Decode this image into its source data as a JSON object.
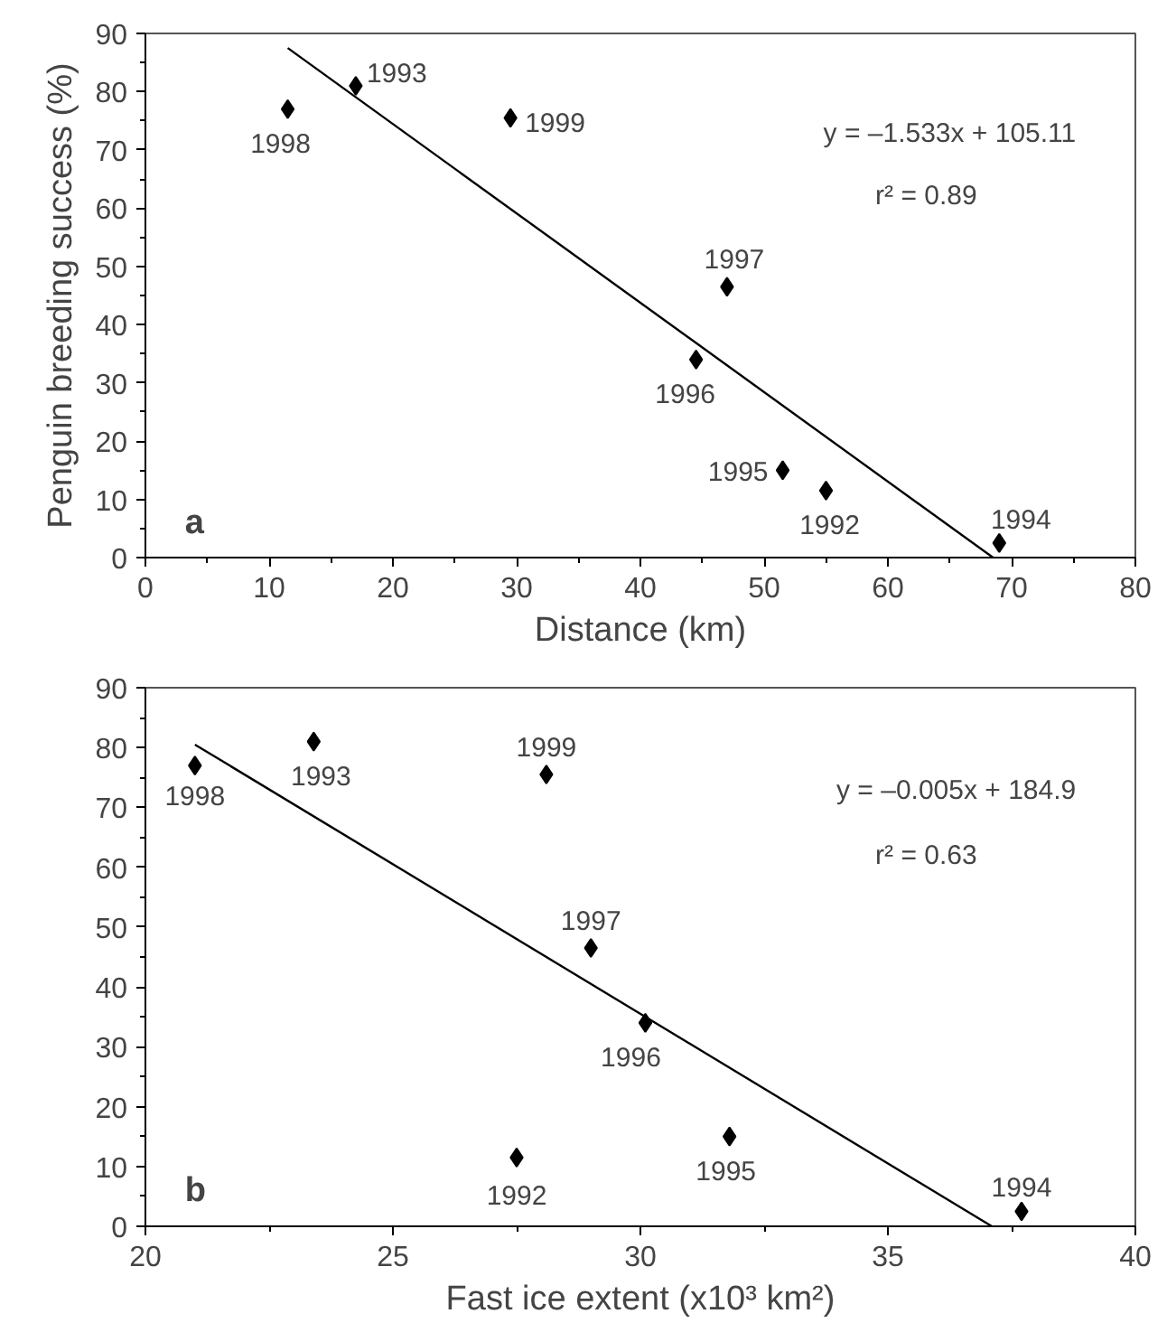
{
  "chart_data": [
    {
      "type": "scatter",
      "xlabel": "Distance (km)",
      "ylabel": "Penguin breeding success (%)",
      "xlim": [
        0,
        80
      ],
      "ylim": [
        0,
        90
      ],
      "xticks": [
        0,
        10,
        20,
        30,
        40,
        50,
        60,
        70,
        80
      ],
      "yticks": [
        0,
        10,
        20,
        30,
        40,
        50,
        60,
        70,
        80,
        90
      ],
      "grid": false,
      "series": [
        {
          "marker": "diamond",
          "color": "#000000",
          "x": [
            11.5,
            17,
            29.5,
            47,
            44.5,
            51.5,
            55,
            69
          ],
          "values": [
            77,
            81,
            75.5,
            46.5,
            34,
            15,
            11.5,
            2.5
          ]
        },
        {
          "type": "line",
          "color": "#000000",
          "x": [
            11.5,
            68.5
          ],
          "values": [
            87.5,
            0
          ]
        }
      ],
      "annotations": [
        "y = –1.533x + 105.11",
        "r² = 0.89",
        "a",
        {
          "text": "1998",
          "x": 11.5,
          "y": 77
        },
        {
          "text": "1993",
          "x": 17,
          "y": 81
        },
        {
          "text": "1999",
          "x": 29.5,
          "y": 75.5
        },
        {
          "text": "1997",
          "x": 47,
          "y": 46.5
        },
        {
          "text": "1996",
          "x": 44.5,
          "y": 34
        },
        {
          "text": "1995",
          "x": 51.5,
          "y": 15
        },
        {
          "text": "1992",
          "x": 55,
          "y": 11.5
        },
        {
          "text": "1994",
          "x": 69,
          "y": 2.5
        }
      ]
    },
    {
      "type": "scatter",
      "xlabel": "Fast ice extent (x10³ km²)",
      "xlim": [
        20,
        40
      ],
      "ylim": [
        0,
        90
      ],
      "xticks": [
        20,
        25,
        30,
        35,
        40
      ],
      "yticks": [
        0,
        10,
        20,
        30,
        40,
        50,
        60,
        70,
        80,
        90
      ],
      "grid": false,
      "series": [
        {
          "marker": "diamond",
          "color": "#000000",
          "x": [
            21.0,
            23.4,
            28.1,
            29.0,
            30.1,
            31.8,
            27.5,
            37.7
          ],
          "values": [
            77,
            81,
            75.5,
            46.5,
            34,
            15,
            11.5,
            2.5
          ]
        },
        {
          "type": "line",
          "color": "#000000",
          "x": [
            21.0,
            37.1
          ],
          "values": [
            80.5,
            0
          ]
        }
      ],
      "annotations": [
        "y = –0.005x + 184.9",
        "r² = 0.63",
        "b",
        {
          "text": "1998",
          "x": 21.0,
          "y": 77
        },
        {
          "text": "1993",
          "x": 23.4,
          "y": 81
        },
        {
          "text": "1999",
          "x": 28.1,
          "y": 75.5
        },
        {
          "text": "1997",
          "x": 29.0,
          "y": 46.5
        },
        {
          "text": "1996",
          "x": 30.1,
          "y": 34
        },
        {
          "text": "1995",
          "x": 31.8,
          "y": 15
        },
        {
          "text": "1992",
          "x": 27.5,
          "y": 11.5
        },
        {
          "text": "1994",
          "x": 37.7,
          "y": 2.5
        }
      ]
    }
  ]
}
